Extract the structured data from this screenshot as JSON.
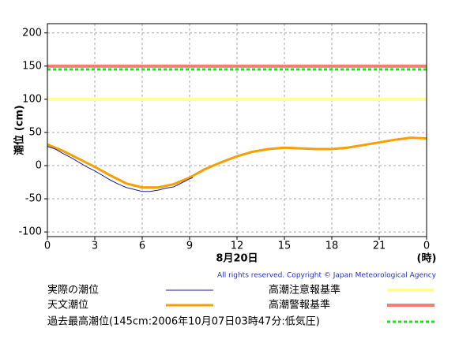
{
  "chart_data": {
    "type": "line",
    "y_axis_label": "潮位 (cm)",
    "x_axis_label": "8月20日",
    "x_unit_label": "(時)",
    "copyright": "All rights reserved. Copyright © Japan Meteorological Agency",
    "xlim": [
      0,
      24
    ],
    "xticks": [
      0,
      3,
      6,
      9,
      12,
      15,
      18,
      21,
      {
        "value": 24,
        "label": "0"
      }
    ],
    "ylim": [
      -107,
      214
    ],
    "yticks": [
      -100,
      -50,
      0,
      50,
      100,
      150,
      200
    ],
    "grid": true,
    "series": [
      {
        "name": "実際の潮位",
        "color": "#1c1c9c",
        "x": [
          0,
          0.5,
          1,
          1.5,
          2,
          2.5,
          3,
          3.5,
          4,
          4.5,
          5,
          5.5,
          6,
          6.5,
          7,
          7.5,
          8,
          8.5,
          9,
          9.2
        ],
        "values": [
          29,
          25,
          18,
          12,
          5,
          -2,
          -8,
          -15,
          -22,
          -28,
          -33,
          -36,
          -39,
          -39,
          -37,
          -34,
          -32,
          -26,
          -20,
          -18
        ]
      },
      {
        "name": "天文潮位",
        "color": "#f5a000",
        "x": [
          0,
          1,
          2,
          3,
          4,
          5,
          6,
          7,
          8,
          9,
          10,
          11,
          12,
          13,
          14,
          15,
          16,
          17,
          18,
          19,
          20,
          21,
          22,
          23,
          24
        ],
        "values": [
          32,
          22,
          10,
          -2,
          -15,
          -27,
          -33,
          -33,
          -28,
          -18,
          -5,
          5,
          14,
          21,
          25,
          27,
          26,
          25,
          25,
          27,
          31,
          35,
          39,
          42,
          41
        ]
      }
    ],
    "reference_lines": [
      {
        "name": "高潮注意報基準",
        "color": "#ffff99",
        "value": 100
      },
      {
        "name": "高潮警報基準",
        "color": "#f08070",
        "value": 150
      },
      {
        "name": "過去最高潮位(145cm:2006年10月07日03時47分:低気圧)",
        "color": "#22dd22",
        "value": 145,
        "dashed": true
      }
    ]
  }
}
